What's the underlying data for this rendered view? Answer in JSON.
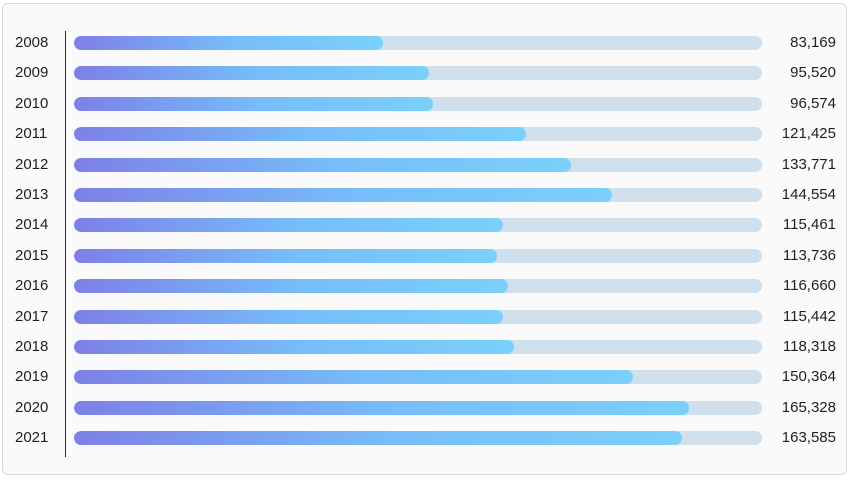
{
  "chart_data": {
    "type": "bar",
    "orientation": "horizontal",
    "categories": [
      "2008",
      "2009",
      "2010",
      "2011",
      "2012",
      "2013",
      "2014",
      "2015",
      "2016",
      "2017",
      "2018",
      "2019",
      "2020",
      "2021"
    ],
    "values": [
      83169,
      95520,
      96574,
      121425,
      133771,
      144554,
      115461,
      113736,
      116660,
      115442,
      118318,
      150364,
      165328,
      163585
    ],
    "value_labels": [
      "83,169",
      "95,520",
      "96,574",
      "121,425",
      "133,771",
      "144,554",
      "115,461",
      "113,736",
      "116,660",
      "115,442",
      "118,318",
      "150,364",
      "165,328",
      "163,585"
    ],
    "xlim": [
      0,
      185000
    ],
    "colors": {
      "track": "#cfdfeb",
      "gradient_start": "#7e7fe8",
      "gradient_end": "#7bd0fb"
    }
  }
}
